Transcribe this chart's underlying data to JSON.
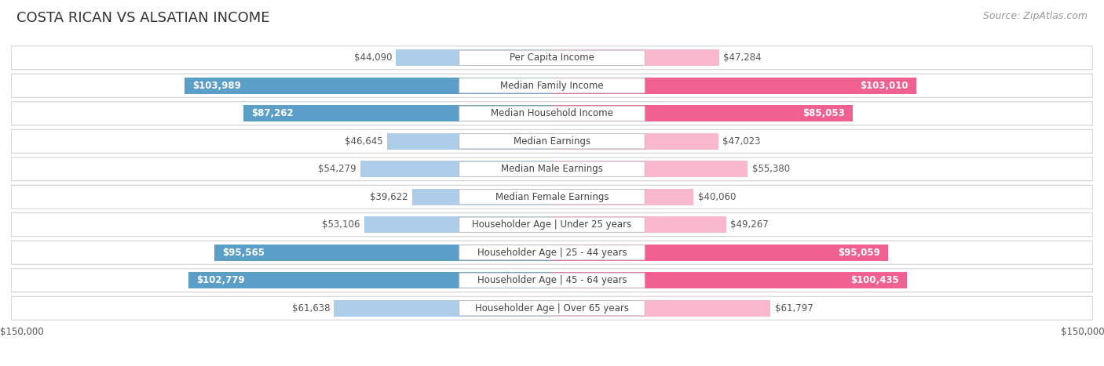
{
  "title": "COSTA RICAN VS ALSATIAN INCOME",
  "source": "Source: ZipAtlas.com",
  "categories": [
    "Per Capita Income",
    "Median Family Income",
    "Median Household Income",
    "Median Earnings",
    "Median Male Earnings",
    "Median Female Earnings",
    "Householder Age | Under 25 years",
    "Householder Age | 25 - 44 years",
    "Householder Age | 45 - 64 years",
    "Householder Age | Over 65 years"
  ],
  "costa_rican": [
    44090,
    103989,
    87262,
    46645,
    54279,
    39622,
    53106,
    95565,
    102779,
    61638
  ],
  "alsatian": [
    47284,
    103010,
    85053,
    47023,
    55380,
    40060,
    49267,
    95059,
    100435,
    61797
  ],
  "max_val": 150000,
  "blue_light": "#AECDE8",
  "blue_mid": "#7EB3D8",
  "blue_dark": "#5B9FC8",
  "pink_light": "#F9B8CE",
  "pink_mid": "#F48BAB",
  "pink_dark": "#F06090",
  "title_fontsize": 13,
  "source_fontsize": 9,
  "val_fontsize": 8.5,
  "cat_fontsize": 8.5,
  "axis_fontsize": 8.5,
  "threshold": 70000
}
